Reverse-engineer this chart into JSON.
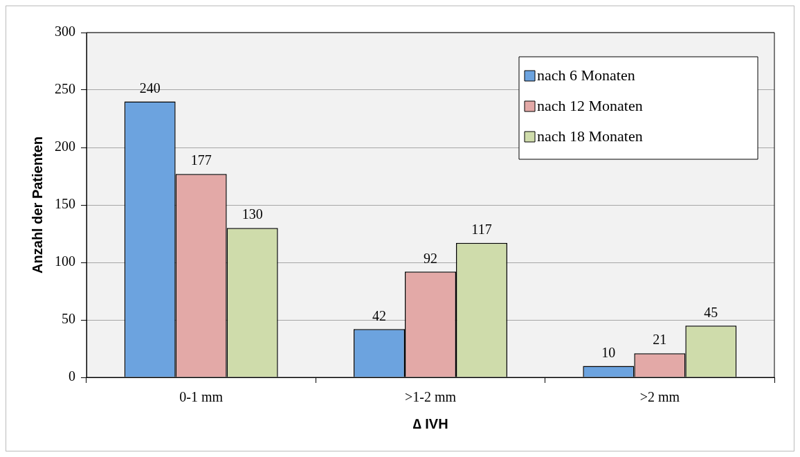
{
  "chart_data": {
    "type": "bar",
    "xlabel": "∆ IVH",
    "ylabel": "Anzahl der Patienten",
    "categories": [
      "0-1 mm",
      ">1-2 mm",
      ">2 mm"
    ],
    "series": [
      {
        "name": "nach 6 Monaten",
        "color": "#6ca3df",
        "values": [
          240,
          42,
          10
        ]
      },
      {
        "name": "nach 12 Monaten",
        "color": "#e3a9a7",
        "values": [
          177,
          92,
          21
        ]
      },
      {
        "name": "nach 18 Monaten",
        "color": "#cfdcab",
        "values": [
          130,
          117,
          45
        ]
      }
    ],
    "ylim": [
      0,
      300
    ],
    "yticks": [
      0,
      50,
      100,
      150,
      200,
      250,
      300
    ],
    "grid": "y",
    "legend": "top right",
    "data_labels": true
  }
}
